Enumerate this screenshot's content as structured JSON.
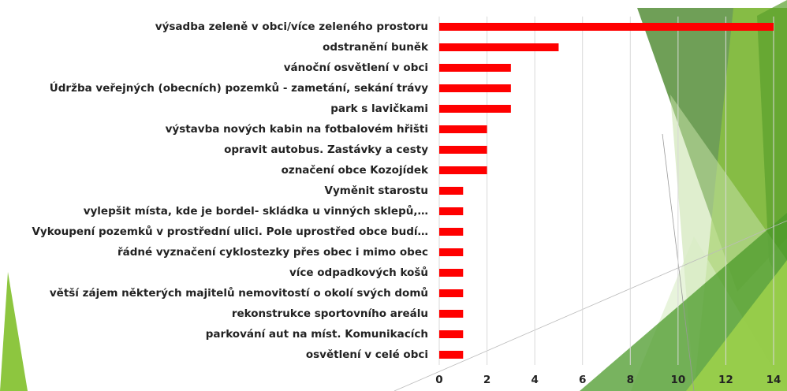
{
  "chart_data": {
    "type": "bar",
    "orientation": "horizontal",
    "categories": [
      "výsadba zeleně v obci/více zeleného prostoru",
      "odstranění buněk",
      "vánoční osvětlení v obci",
      "Údržba veřejných (obecních) pozemků - zametání, sekání trávy",
      "park s lavičkami",
      "výstavba nových kabin na fotbalovém hřišti",
      "opravit autobus. Zastávky a cesty",
      "označení obce Kozojídek",
      "Vyměnit starostu",
      "vylepšit místa, kde je bordel- skládka u vinných sklepů,…",
      "Vykoupení pozemků v prostřední ulici. Pole uprostřed obce budí…",
      "řádné vyznačení cyklostezky přes obec i mimo obec",
      "více odpadkových košů",
      "větší zájem některých majitelů nemovitostí o okolí svých domů",
      "rekonstrukce sportovního areálu",
      "parkování aut na míst. Komunikacích",
      "osvětlení v celé obci"
    ],
    "values": [
      14,
      5,
      3,
      3,
      3,
      2,
      2,
      2,
      1,
      1,
      1,
      1,
      1,
      1,
      1,
      1,
      1
    ],
    "color": "#ff0000",
    "xlim": [
      0,
      14
    ],
    "xticks": [
      0,
      2,
      4,
      6,
      8,
      10,
      12,
      14
    ],
    "grid": true
  }
}
